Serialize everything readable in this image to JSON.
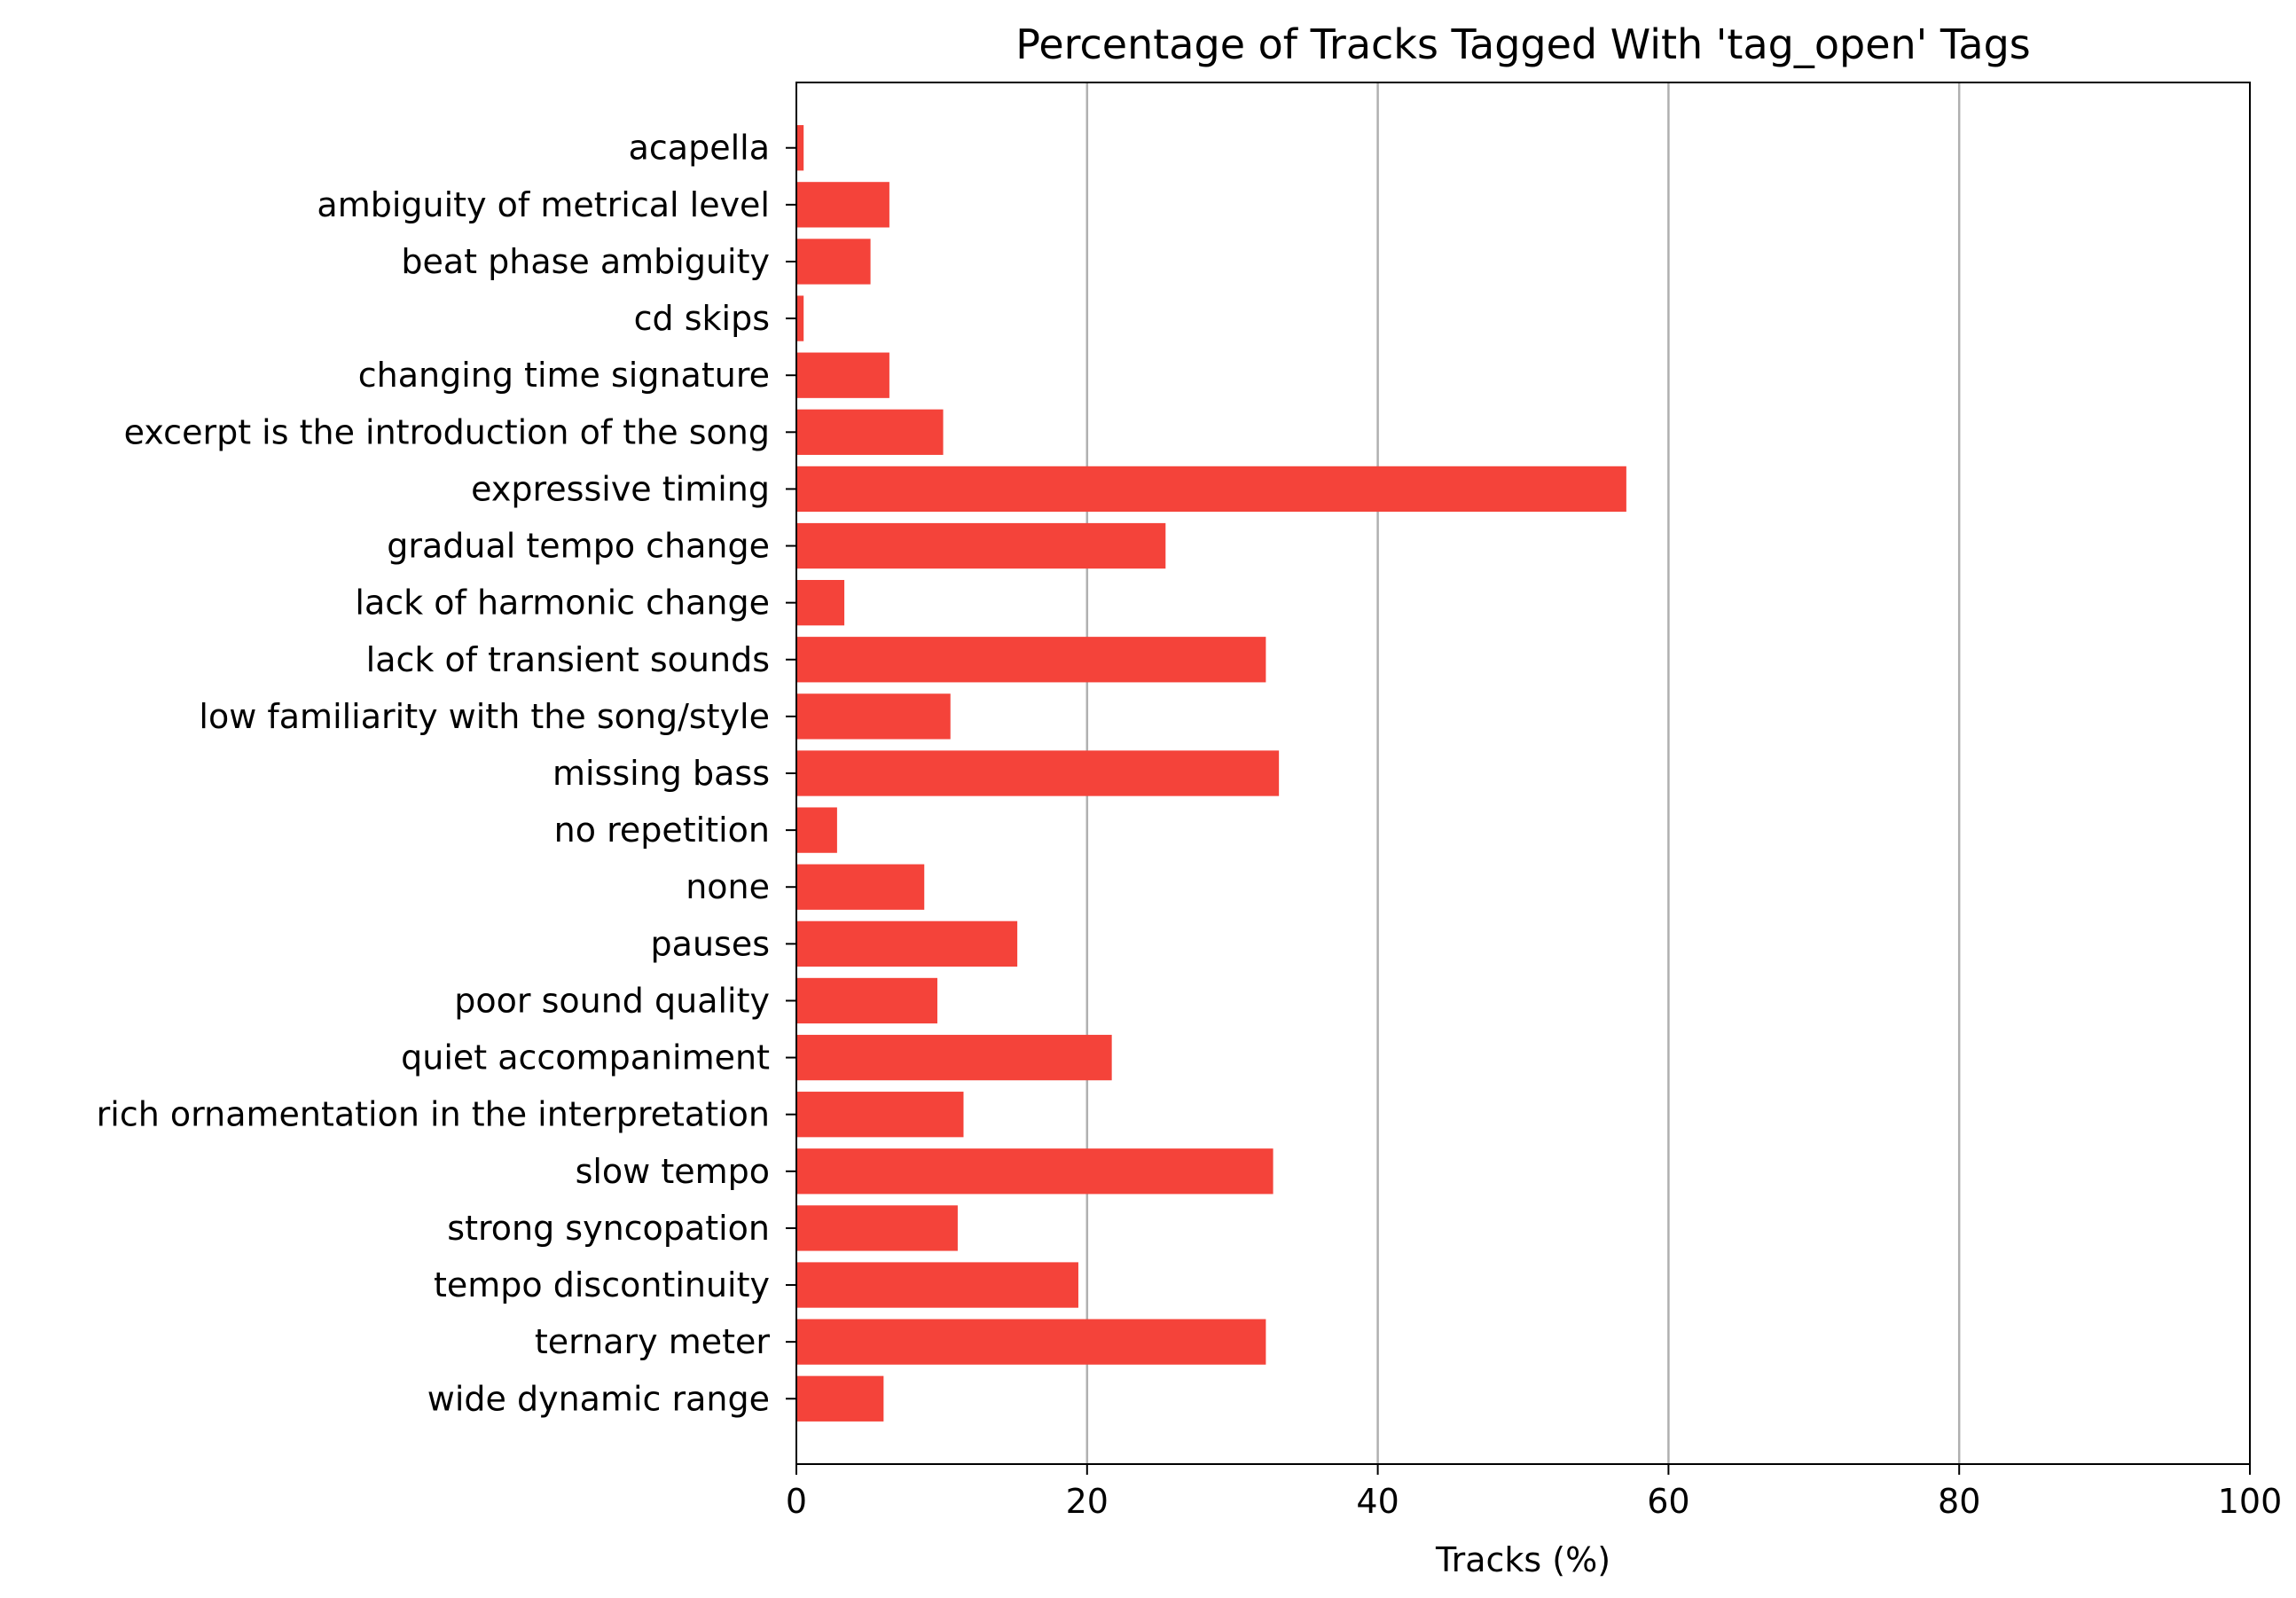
{
  "chart_data": {
    "type": "bar",
    "orientation": "horizontal",
    "title": "Percentage of Tracks Tagged With 'tag_open' Tags",
    "xlabel": "Tracks (%)",
    "ylabel": "",
    "xlim": [
      0,
      100
    ],
    "xticks": [
      "0",
      "20",
      "40",
      "60",
      "80",
      "100"
    ],
    "grid": "vertical gridlines at major x ticks",
    "bar_color": "#f4433a",
    "categories": [
      "acapella",
      "ambiguity of metrical level",
      "beat phase ambiguity",
      "cd skips",
      "changing time signature",
      "excerpt is the introduction of the song",
      "expressive timing",
      "gradual tempo change",
      "lack of harmonic change",
      "lack of transient sounds",
      "low familiarity with the song/style",
      "missing bass",
      "no repetition",
      "none",
      "pauses",
      "poor sound quality",
      "quiet accompaniment",
      "rich ornamentation in the interpretation",
      "slow tempo",
      "strong syncopation",
      "tempo discontinuity",
      "ternary meter",
      "wide dynamic range"
    ],
    "values": [
      0.5,
      6.4,
      5.1,
      0.5,
      6.4,
      10.1,
      57.1,
      25.4,
      3.3,
      32.3,
      10.6,
      33.2,
      2.8,
      8.8,
      15.2,
      9.7,
      21.7,
      11.5,
      32.8,
      11.1,
      19.4,
      32.3,
      6.0
    ]
  }
}
